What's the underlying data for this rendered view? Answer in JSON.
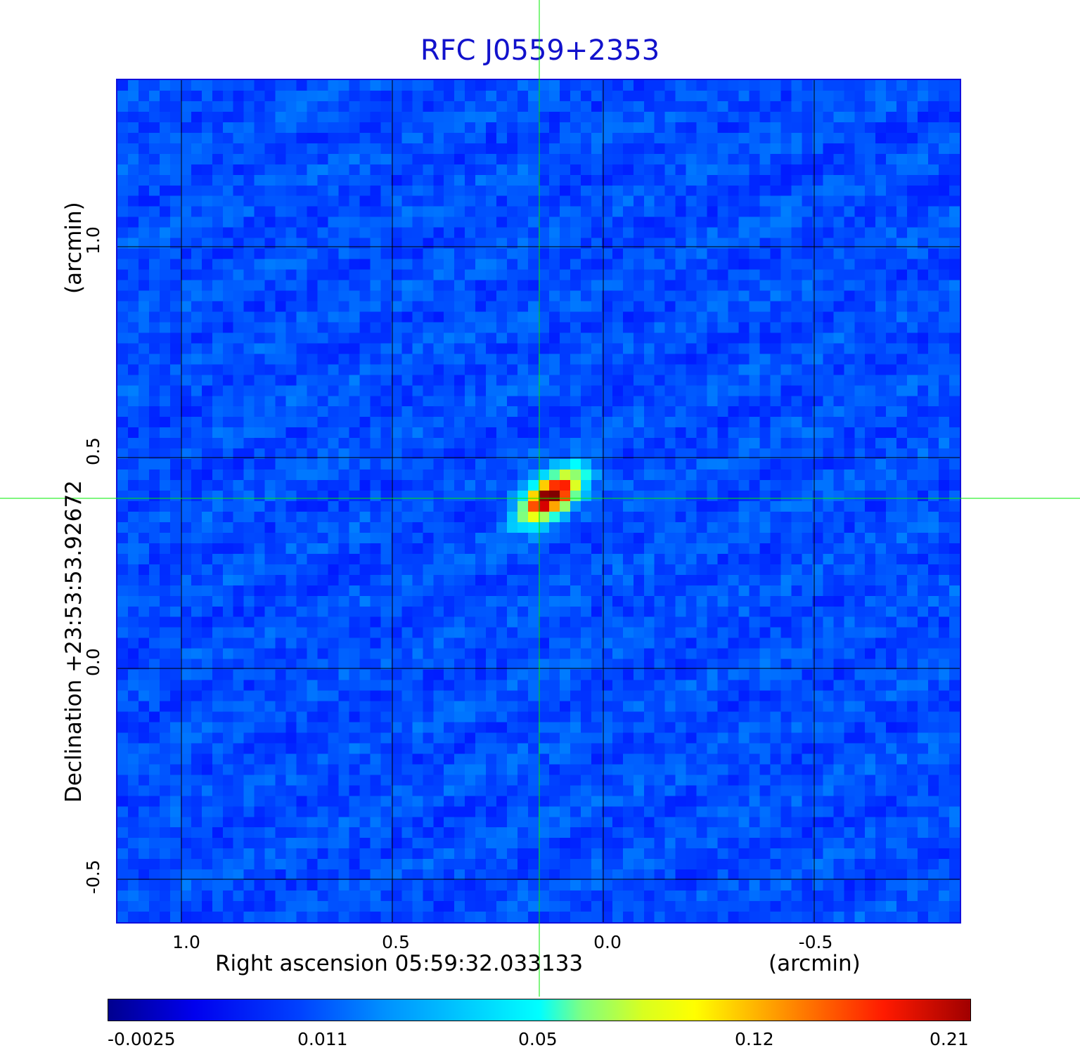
{
  "title": "RFC J0559+2353",
  "x_axis": {
    "label": "Right ascension  05:59:32.033133",
    "unit_label": "(arcmin)",
    "ticks": [
      "1.0",
      "0.5",
      "0.0",
      "-0.5"
    ]
  },
  "y_axis": {
    "label": "Declination  +23:53:53.92672",
    "unit_label": "(arcmin)",
    "ticks": [
      "1.0",
      "0.5",
      "0.0",
      "-0.5"
    ]
  },
  "colorbar": {
    "ticks": [
      "-0.0025",
      "0.011",
      "0.05",
      "0.12",
      "0.21"
    ],
    "colormap": "jet"
  },
  "colors": {
    "title": "#1212cc",
    "crosshair": "#00ee00",
    "background_map": "#1a40f0"
  }
}
